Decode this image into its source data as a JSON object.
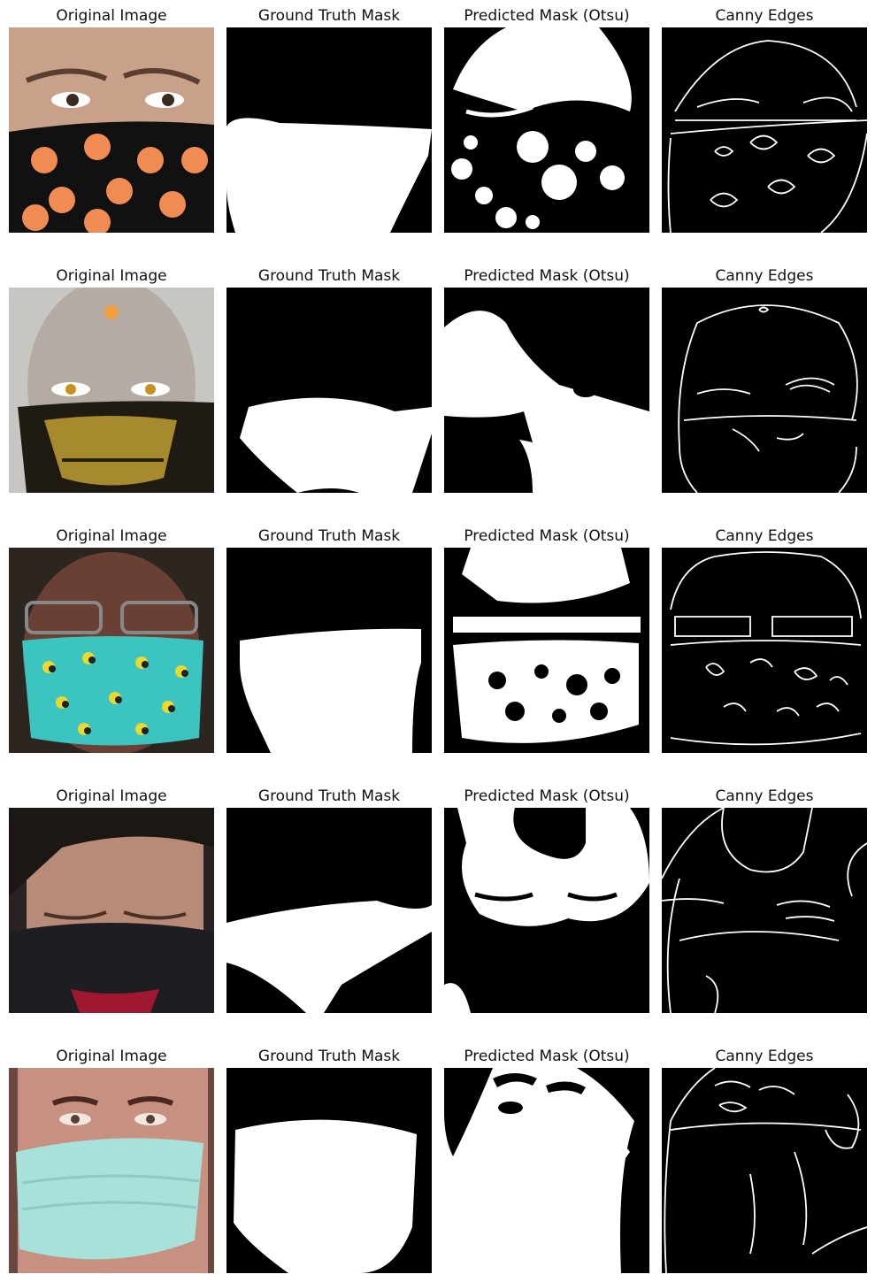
{
  "columns": [
    "Original Image",
    "Ground Truth Mask",
    "Predicted Mask (Otsu)",
    "Canny Edges"
  ],
  "rows": [
    {
      "scene": "face-halloween-pumpkin-mask"
    },
    {
      "scene": "face-gold-skull-mask"
    },
    {
      "scene": "face-bee-pattern-mask"
    },
    {
      "scene": "face-black-cloth-mask"
    },
    {
      "scene": "face-surgical-mask"
    }
  ],
  "colors": {
    "mask_foreground": "#ffffff",
    "mask_background": "#000000",
    "skin": "#d9b8a4",
    "pumpkin": "#f08b53",
    "gold": "#a88a2e",
    "teal": "#3cc4c0",
    "surgical": "#a8e0da"
  }
}
